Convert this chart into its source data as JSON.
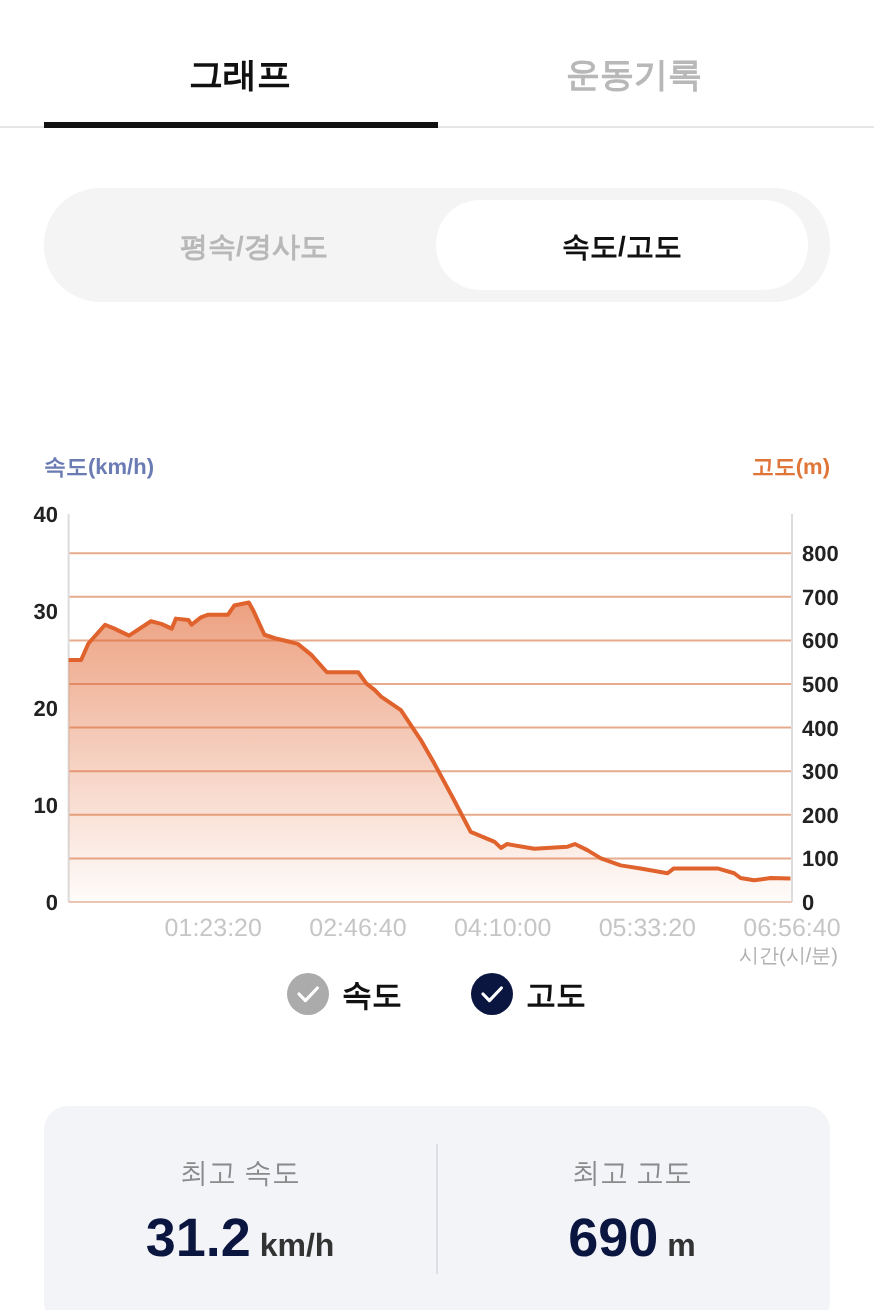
{
  "chart_data": {
    "type": "area",
    "xlabel": "시간(시/분)",
    "ylabel": "속도(km/h)",
    "y2label": "고도(m)",
    "xlim": [
      0,
      6.9444
    ],
    "xticks": [
      {
        "value": 1.3889,
        "label": "01:23:20"
      },
      {
        "value": 2.7778,
        "label": "02:46:40"
      },
      {
        "value": 4.1667,
        "label": "04:10:00"
      },
      {
        "value": 5.5556,
        "label": "05:33:20"
      },
      {
        "value": 6.9444,
        "label": "06:56:40"
      }
    ],
    "ylim": [
      0,
      40
    ],
    "yticks": [
      0,
      10,
      20,
      30,
      40
    ],
    "y2lim": [
      0,
      890
    ],
    "y2ticks": [
      0,
      100,
      200,
      300,
      400,
      500,
      600,
      700,
      800
    ],
    "grid": true,
    "legend": "bottom",
    "marker": "none",
    "x": [
      0,
      0.12,
      0.19,
      0.35,
      0.44,
      0.58,
      0.79,
      0.89,
      0.99,
      1.03,
      1.15,
      1.18,
      1.27,
      1.34,
      1.53,
      1.59,
      1.73,
      1.77,
      1.88,
      1.98,
      2.1,
      2.2,
      2.33,
      2.48,
      2.78,
      2.86,
      2.94,
      3.0,
      3.19,
      3.38,
      3.51,
      3.7,
      3.86,
      4.09,
      4.15,
      4.21,
      4.47,
      4.79,
      4.86,
      4.98,
      5.11,
      5.3,
      5.49,
      5.75,
      5.81,
      6.23,
      6.39,
      6.45,
      6.58,
      6.74,
      6.93
    ],
    "series": [
      {
        "name": "속도",
        "values": [
          null,
          null,
          null,
          null,
          null,
          null,
          null,
          null,
          null,
          null,
          null,
          null,
          null,
          null,
          null,
          null,
          null,
          null,
          null,
          null,
          null,
          null,
          null,
          null,
          null,
          null,
          null,
          null,
          null,
          null,
          null,
          null,
          null,
          null,
          null,
          null,
          null,
          null,
          null,
          null,
          null,
          null,
          null,
          null,
          null,
          null,
          null,
          null,
          null,
          null,
          null
        ]
      },
      {
        "name": "고도",
        "color": "#e0622c",
        "axis": "y2",
        "values": [
          555,
          555,
          593,
          636,
          627,
          611,
          644,
          638,
          627,
          650,
          647,
          636,
          653,
          659,
          659,
          680,
          687,
          670,
          613,
          605,
          598,
          592,
          567,
          527,
          527,
          501,
          486,
          471,
          440,
          372,
          318,
          234,
          161,
          138,
          124,
          133,
          122,
          127,
          133,
          119,
          100,
          84,
          77,
          66,
          77,
          77,
          66,
          55,
          50,
          55,
          54
        ]
      }
    ],
    "annotations": [
      "그래프",
      "운동기록",
      "평속/경사도",
      "속도/고도",
      "최고 속도",
      "31.2 km/h",
      "최고 고도",
      "690 m"
    ]
  }
}
